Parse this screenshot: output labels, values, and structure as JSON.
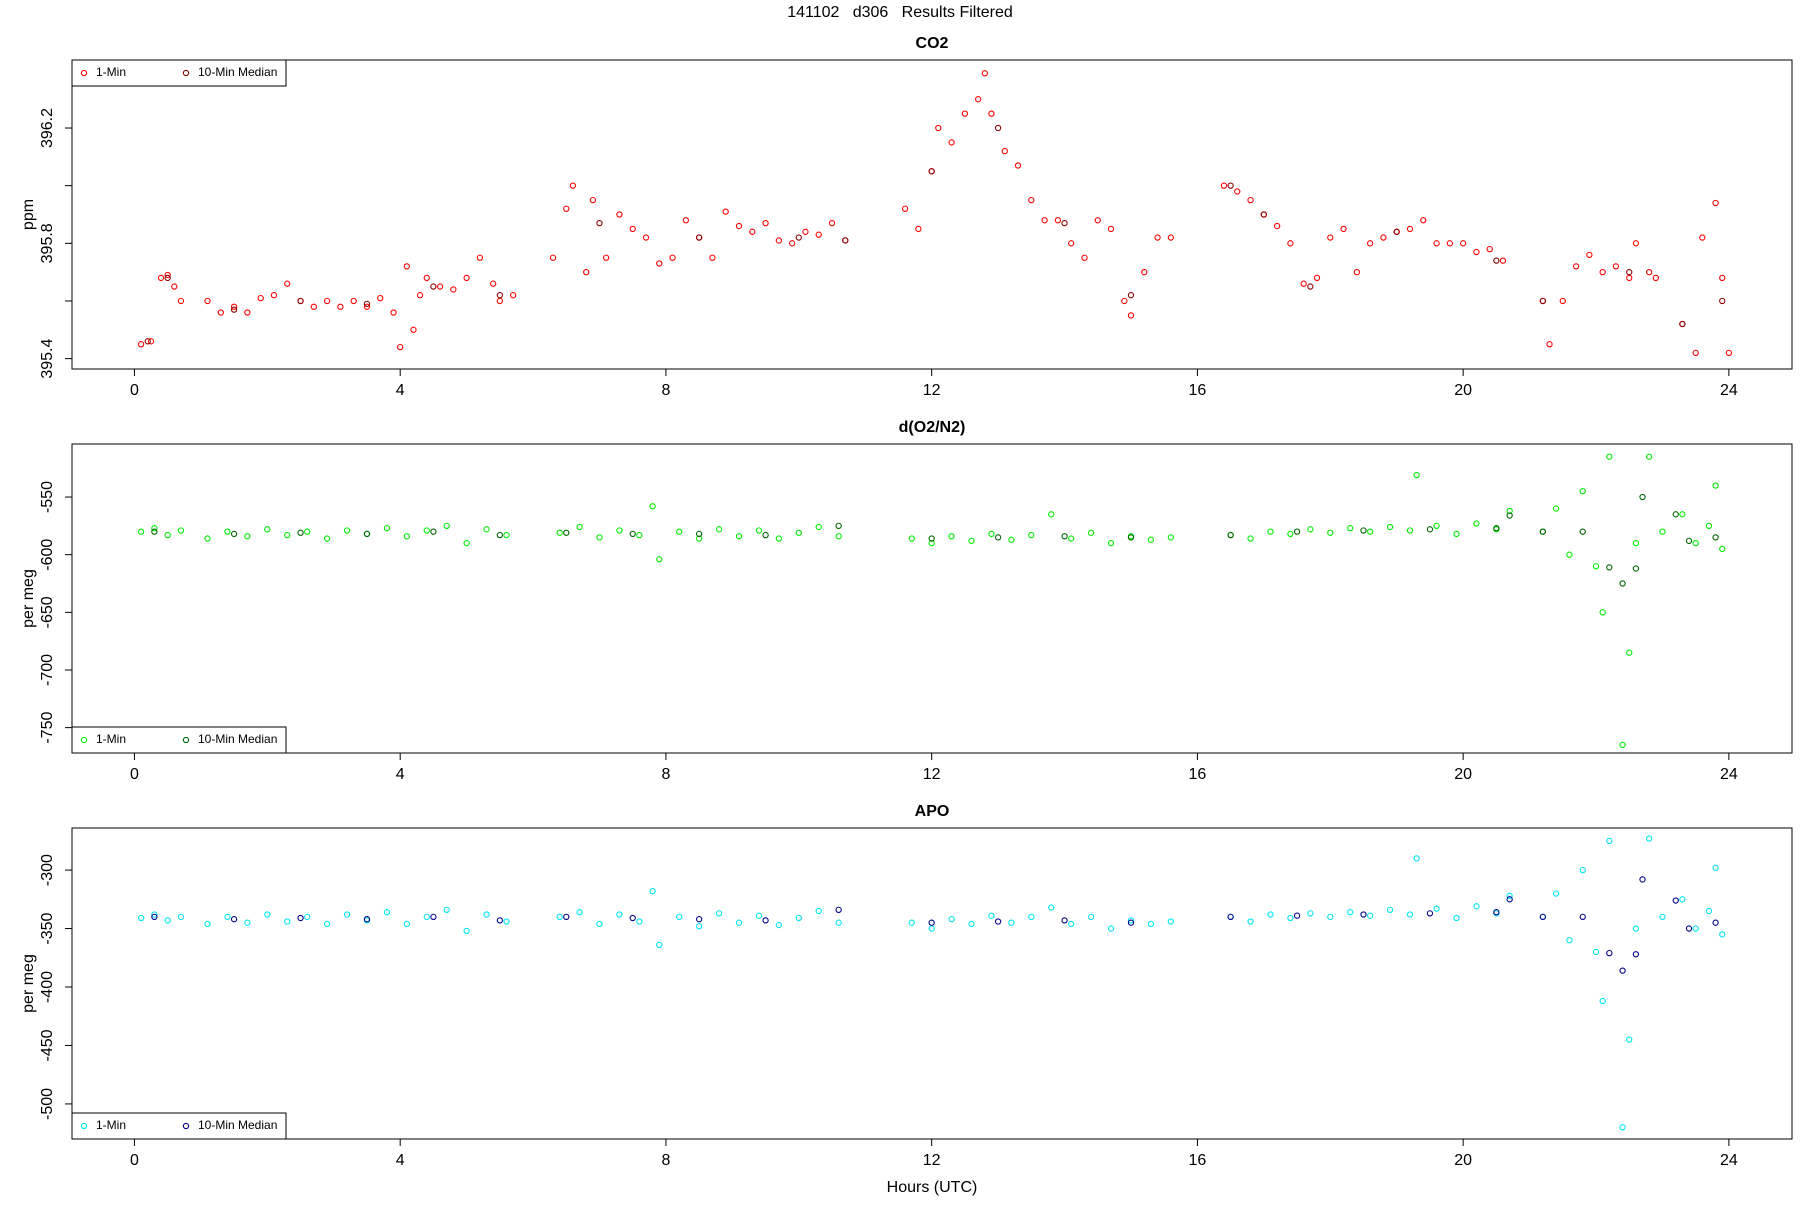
{
  "title": "141102   d306   Results Filtered",
  "chart_data": [
    {
      "type": "scatter",
      "title": "CO2",
      "ylabel": "ppm",
      "legend": "topleft",
      "xlim": [
        -0.94,
        24.95
      ],
      "xticks": [
        0,
        4,
        8,
        12,
        16,
        20,
        24
      ],
      "ylim": [
        395.364,
        396.436
      ],
      "yticks": [
        395.4,
        395.8,
        396.2
      ],
      "minor_yticks": [
        395.6,
        396.0
      ],
      "series": [
        {
          "name": "1-Min",
          "color": "#ff0000",
          "x": [
            0.1,
            0.25,
            0.4,
            0.5,
            0.6,
            0.7,
            1.1,
            1.3,
            1.5,
            1.7,
            1.9,
            2.1,
            2.3,
            2.5,
            2.7,
            2.9,
            3.1,
            3.3,
            3.5,
            3.7,
            3.9,
            4.0,
            4.1,
            4.2,
            4.3,
            4.4,
            4.6,
            4.8,
            5.0,
            5.2,
            5.4,
            5.5,
            5.7,
            6.3,
            6.5,
            6.6,
            6.8,
            6.9,
            7.1,
            7.3,
            7.5,
            7.7,
            7.9,
            8.1,
            8.3,
            8.5,
            8.7,
            8.9,
            9.1,
            9.3,
            9.5,
            9.7,
            9.9,
            10.1,
            10.3,
            10.5,
            10.7,
            11.6,
            11.8,
            12.0,
            12.1,
            12.3,
            12.5,
            12.7,
            12.8,
            12.9,
            13.1,
            13.3,
            13.5,
            13.7,
            13.9,
            14.1,
            14.3,
            14.5,
            14.7,
            14.9,
            15.0,
            15.2,
            15.4,
            15.6,
            16.4,
            16.6,
            16.8,
            17.0,
            17.2,
            17.4,
            17.6,
            17.8,
            18.0,
            18.2,
            18.4,
            18.6,
            18.8,
            19.0,
            19.2,
            19.4,
            19.6,
            19.8,
            20.0,
            20.2,
            20.4,
            20.6,
            21.2,
            21.3,
            21.5,
            21.7,
            21.9,
            22.1,
            22.3,
            22.5,
            22.6,
            22.8,
            22.9,
            23.3,
            23.5,
            23.6,
            23.8,
            23.9,
            24.0
          ],
          "values": [
            395.45,
            395.46,
            395.68,
            395.69,
            395.65,
            395.6,
            395.6,
            395.56,
            395.58,
            395.56,
            395.61,
            395.62,
            395.66,
            395.6,
            395.58,
            395.6,
            395.58,
            395.6,
            395.58,
            395.61,
            395.56,
            395.44,
            395.72,
            395.5,
            395.62,
            395.68,
            395.65,
            395.64,
            395.68,
            395.75,
            395.66,
            395.6,
            395.62,
            395.75,
            395.92,
            396.0,
            395.7,
            395.95,
            395.75,
            395.9,
            395.85,
            395.82,
            395.73,
            395.75,
            395.88,
            395.82,
            395.75,
            395.91,
            395.86,
            395.84,
            395.87,
            395.81,
            395.8,
            395.84,
            395.83,
            395.87,
            395.81,
            395.92,
            395.85,
            396.05,
            396.2,
            396.15,
            396.25,
            396.3,
            396.39,
            396.25,
            396.12,
            396.07,
            395.95,
            395.88,
            395.88,
            395.8,
            395.75,
            395.88,
            395.85,
            395.6,
            395.55,
            395.7,
            395.82,
            395.82,
            396.0,
            395.98,
            395.95,
            395.9,
            395.86,
            395.8,
            395.66,
            395.68,
            395.82,
            395.85,
            395.7,
            395.8,
            395.82,
            395.84,
            395.85,
            395.88,
            395.8,
            395.8,
            395.8,
            395.77,
            395.78,
            395.74,
            395.6,
            395.45,
            395.6,
            395.72,
            395.76,
            395.7,
            395.72,
            395.68,
            395.8,
            395.7,
            395.68,
            395.52,
            395.42,
            395.82,
            395.94,
            395.68,
            395.42
          ]
        },
        {
          "name": "10-Min Median",
          "color": "#8b0000",
          "x": [
            0.2,
            0.5,
            1.5,
            2.5,
            3.5,
            4.5,
            5.5,
            7.0,
            8.5,
            10.0,
            10.7,
            12.0,
            13.0,
            14.0,
            15.0,
            16.5,
            17.0,
            17.7,
            19.0,
            20.5,
            21.2,
            22.5,
            23.3,
            23.9
          ],
          "values": [
            395.46,
            395.68,
            395.57,
            395.6,
            395.59,
            395.65,
            395.62,
            395.87,
            395.82,
            395.82,
            395.81,
            396.05,
            396.2,
            395.87,
            395.62,
            396.0,
            395.9,
            395.65,
            395.84,
            395.74,
            395.6,
            395.7,
            395.52,
            395.6
          ]
        }
      ]
    },
    {
      "type": "scatter",
      "title": "d(O2/N2)",
      "ylabel": "per meg",
      "legend": "bottomleft",
      "xlim": [
        -0.94,
        24.95
      ],
      "xticks": [
        0,
        4,
        8,
        12,
        16,
        20,
        24
      ],
      "ylim": [
        -772,
        -504
      ],
      "yticks": [
        -750,
        -700,
        -650,
        -600,
        -550
      ],
      "series": [
        {
          "name": "1-Min",
          "color": "#00ee00",
          "x": [
            0.1,
            0.3,
            0.5,
            0.7,
            1.1,
            1.4,
            1.7,
            2.0,
            2.3,
            2.6,
            2.9,
            3.2,
            3.5,
            3.8,
            4.1,
            4.4,
            4.7,
            5.0,
            5.3,
            5.6,
            6.4,
            6.7,
            7.0,
            7.3,
            7.6,
            7.8,
            7.9,
            8.2,
            8.5,
            8.8,
            9.1,
            9.4,
            9.7,
            10.0,
            10.3,
            10.6,
            11.7,
            12.0,
            12.3,
            12.6,
            12.9,
            13.2,
            13.5,
            13.8,
            14.1,
            14.4,
            14.7,
            15.0,
            15.3,
            15.6,
            16.5,
            16.8,
            17.1,
            17.4,
            17.7,
            18.0,
            18.3,
            18.6,
            18.9,
            19.2,
            19.3,
            19.6,
            19.9,
            20.2,
            20.5,
            20.7,
            21.2,
            21.4,
            21.6,
            21.8,
            22.0,
            22.1,
            22.2,
            22.4,
            22.5,
            22.6,
            22.8,
            23.0,
            23.3,
            23.5,
            23.7,
            23.8,
            23.9
          ],
          "values": [
            -580,
            -577,
            -583,
            -579,
            -586,
            -580,
            -584,
            -578,
            -583,
            -580,
            -586,
            -579,
            -582,
            -577,
            -584,
            -579,
            -575,
            -590,
            -578,
            -583,
            -581,
            -576,
            -585,
            -579,
            -583,
            -558,
            -604,
            -580,
            -586,
            -578,
            -584,
            -579,
            -586,
            -581,
            -576,
            -584,
            -586,
            -590,
            -584,
            -588,
            -582,
            -587,
            -583,
            -565,
            -586,
            -581,
            -590,
            -584,
            -587,
            -585,
            -583,
            -586,
            -580,
            -582,
            -578,
            -581,
            -577,
            -580,
            -576,
            -579,
            -531,
            -575,
            -582,
            -573,
            -578,
            -562,
            -580,
            -560,
            -600,
            -545,
            -610,
            -650,
            -515,
            -765,
            -685,
            -590,
            -515,
            -580,
            -565,
            -590,
            -575,
            -540,
            -595
          ]
        },
        {
          "name": "10-Min Median",
          "color": "#006400",
          "x": [
            0.3,
            1.5,
            2.5,
            3.5,
            4.5,
            5.5,
            6.5,
            7.5,
            8.5,
            9.5,
            10.6,
            12.0,
            13.0,
            14.0,
            15.0,
            16.5,
            17.5,
            18.5,
            19.5,
            20.5,
            20.7,
            21.2,
            21.8,
            22.2,
            22.4,
            22.6,
            22.7,
            23.2,
            23.4,
            23.8
          ],
          "values": [
            -580,
            -582,
            -581,
            -582,
            -580,
            -583,
            -581,
            -582,
            -582,
            -583,
            -575,
            -586,
            -585,
            -584,
            -585,
            -583,
            -580,
            -579,
            -578,
            -577,
            -566,
            -580,
            -580,
            -611,
            -625,
            -612,
            -550,
            -565,
            -588,
            -585
          ]
        }
      ]
    },
    {
      "type": "scatter",
      "title": "APO",
      "ylabel": "per meg",
      "xlabel": "Hours (UTC)",
      "legend": "bottomleft",
      "xlim": [
        -0.94,
        24.95
      ],
      "xticks": [
        0,
        4,
        8,
        12,
        16,
        20,
        24
      ],
      "ylim": [
        -530,
        -264
      ],
      "yticks": [
        -500,
        -450,
        -400,
        -350,
        -300
      ],
      "series": [
        {
          "name": "1-Min",
          "color": "#00e5ee",
          "x": [
            0.1,
            0.3,
            0.5,
            0.7,
            1.1,
            1.4,
            1.7,
            2.0,
            2.3,
            2.6,
            2.9,
            3.2,
            3.5,
            3.8,
            4.1,
            4.4,
            4.7,
            5.0,
            5.3,
            5.6,
            6.4,
            6.7,
            7.0,
            7.3,
            7.6,
            7.8,
            7.9,
            8.2,
            8.5,
            8.8,
            9.1,
            9.4,
            9.7,
            10.0,
            10.3,
            10.6,
            11.7,
            12.0,
            12.3,
            12.6,
            12.9,
            13.2,
            13.5,
            13.8,
            14.1,
            14.4,
            14.7,
            15.0,
            15.3,
            15.6,
            16.5,
            16.8,
            17.1,
            17.4,
            17.7,
            18.0,
            18.3,
            18.6,
            18.9,
            19.2,
            19.3,
            19.6,
            19.9,
            20.2,
            20.5,
            20.7,
            21.2,
            21.4,
            21.6,
            21.8,
            22.0,
            22.1,
            22.2,
            22.4,
            22.5,
            22.6,
            22.8,
            23.0,
            23.3,
            23.5,
            23.7,
            23.8,
            23.9
          ],
          "values": [
            -341,
            -338,
            -343,
            -340,
            -346,
            -340,
            -345,
            -338,
            -344,
            -340,
            -346,
            -338,
            -343,
            -336,
            -346,
            -340,
            -334,
            -352,
            -338,
            -344,
            -340,
            -336,
            -346,
            -338,
            -344,
            -318,
            -364,
            -340,
            -348,
            -337,
            -345,
            -339,
            -347,
            -341,
            -335,
            -345,
            -345,
            -350,
            -342,
            -346,
            -339,
            -345,
            -340,
            -332,
            -346,
            -340,
            -350,
            -343,
            -346,
            -344,
            -340,
            -344,
            -338,
            -341,
            -337,
            -340,
            -336,
            -339,
            -334,
            -338,
            -290,
            -333,
            -341,
            -331,
            -337,
            -322,
            -340,
            -320,
            -360,
            -300,
            -370,
            -412,
            -275,
            -520,
            -445,
            -350,
            -273,
            -340,
            -325,
            -350,
            -335,
            -298,
            -355
          ]
        },
        {
          "name": "10-Min Median",
          "color": "#00008b",
          "x": [
            0.3,
            1.5,
            2.5,
            3.5,
            4.5,
            5.5,
            6.5,
            7.5,
            8.5,
            9.5,
            10.6,
            12.0,
            13.0,
            14.0,
            15.0,
            16.5,
            17.5,
            18.5,
            19.5,
            20.5,
            20.7,
            21.2,
            21.8,
            22.2,
            22.4,
            22.6,
            22.7,
            23.2,
            23.4,
            23.8
          ],
          "values": [
            -340,
            -342,
            -341,
            -342,
            -340,
            -343,
            -340,
            -341,
            -342,
            -343,
            -334,
            -345,
            -344,
            -343,
            -345,
            -340,
            -339,
            -338,
            -337,
            -336,
            -325,
            -340,
            -340,
            -371,
            -386,
            -372,
            -308,
            -326,
            -350,
            -345
          ]
        }
      ]
    }
  ]
}
